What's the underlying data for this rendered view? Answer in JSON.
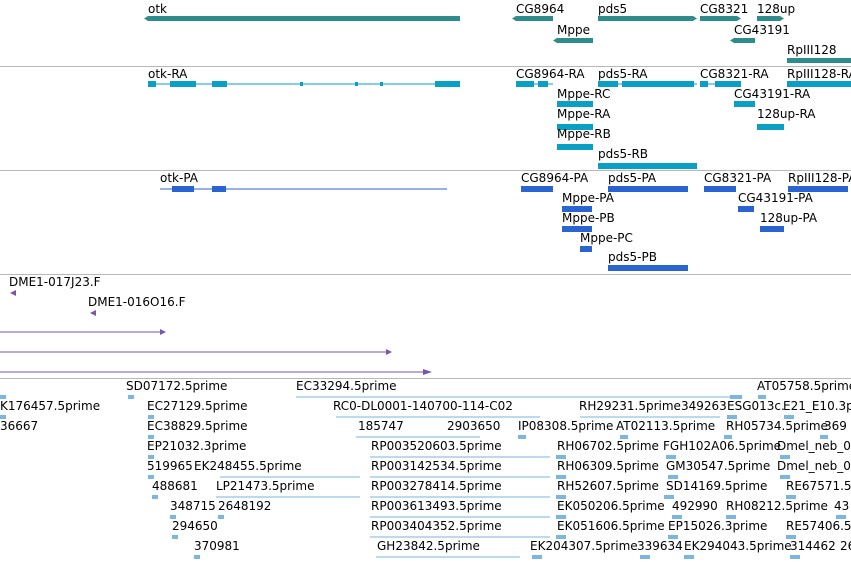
{
  "colors": {
    "gene": "#2f8c8c",
    "transcript": "#0aa0c6",
    "protein": "#2a64d0",
    "clone": "#7a56a8",
    "est": "#7ab6de",
    "separator": "#b8b8b8"
  },
  "tracks": {
    "genes": {
      "labels": [
        "otk",
        "CG8964",
        "pds5",
        "CG8321",
        "128up",
        "Mppe",
        "CG43191",
        "RpIII128"
      ]
    },
    "transcripts": {
      "labels": [
        "otk-RA",
        "CG8964-RA",
        "pds5-RA",
        "CG8321-RA",
        "RpIII128-RA",
        "Mppe-RC",
        "CG43191-RA",
        "Mppe-RA",
        "128up-RA",
        "Mppe-RB",
        "pds5-RB"
      ]
    },
    "proteins": {
      "labels": [
        "otk-PA",
        "CG8964-PA",
        "pds5-PA",
        "CG8321-PA",
        "RpIII128-PA",
        "Mppe-PA",
        "CG43191-PA",
        "Mppe-PB",
        "128up-PA",
        "Mppe-PC",
        "pds5-PB"
      ]
    },
    "clones": {
      "labels": [
        "DME1-017J23.F",
        "DME1-016O16.F"
      ]
    },
    "ests": {
      "labels": [
        "SD07172.5prime",
        "EC33294.5prime",
        "AT05758.5prime",
        "K176457.5prime",
        "EC27129.5prime",
        "RC0-DL0001-140700-114-C02",
        "RH29231.5prime",
        "349263",
        "ESG013c.",
        "E21_E10.3p",
        "36667",
        "EC38829.5prime",
        "185747",
        "2903650",
        "IP08308.5prime",
        "AT02113.5prime",
        "RH05734.5prime",
        "369",
        "EP21032.3prime",
        "RP003520603.5prime",
        "RH06702.5prime",
        "FGH102A06.5prime",
        "Dmel_neb_0",
        "519965",
        "EK248455.5prime",
        "RP003142534.5prime",
        "RH06309.5prime",
        "GM30547.5prime",
        "Dmel_neb_0",
        "488681",
        "LP21473.5prime",
        "RP003278414.5prime",
        "RH52607.5prime",
        "SD14169.5prime",
        "RE67571.5",
        "348715",
        "2648192",
        "RP003613493.5prime",
        "EK050206.5prime",
        "492990",
        "RH08212.5prime",
        "43",
        "294650",
        "RP003404352.5prime",
        "EK051606.5prime",
        "EP15026.3prime",
        "RE57406.5",
        "370981",
        "GH23842.5prime",
        "EK204307.5prime",
        "339634",
        "EK294043.5prime",
        "314462",
        "26"
      ]
    }
  }
}
